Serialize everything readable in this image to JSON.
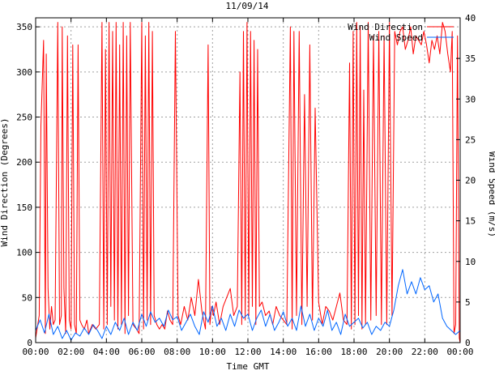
{
  "chart_data": {
    "type": "line",
    "title": "11/09/14",
    "xlabel": "Time GMT",
    "ylabel_left": "Wind Direction (Degrees)",
    "ylabel_right": "Wind Speed (m/s)",
    "x_unit": "hours GMT",
    "x_range": [
      0,
      24
    ],
    "x_tick_values": [
      0,
      2,
      4,
      6,
      8,
      10,
      12,
      14,
      16,
      18,
      20,
      22,
      24
    ],
    "x_tick_labels": [
      "00:00",
      "02:00",
      "04:00",
      "06:00",
      "08:00",
      "10:00",
      "12:00",
      "14:00",
      "16:00",
      "18:00",
      "20:00",
      "22:00",
      "00:00"
    ],
    "y_left_range": [
      0,
      360
    ],
    "y_left_ticks": [
      0,
      50,
      100,
      150,
      200,
      250,
      300,
      350
    ],
    "y_left_tick_labels": [
      "0",
      "50",
      "100",
      "150",
      "200",
      "250",
      "300",
      "350"
    ],
    "y_right_range": [
      0,
      40
    ],
    "y_right_ticks": [
      0,
      5,
      10,
      15,
      20,
      25,
      30,
      35,
      40
    ],
    "y_right_tick_labels": [
      "0",
      "5",
      "10",
      "15",
      "20",
      "25",
      "30",
      "35",
      "40"
    ],
    "grid": true,
    "legend_position": "top-right",
    "series": [
      {
        "name": "Wind Direction",
        "axis": "left",
        "color": "#ff0000",
        "x": [
          0.0,
          0.2,
          0.3,
          0.45,
          0.55,
          0.6,
          0.7,
          0.8,
          0.9,
          1.0,
          1.1,
          1.25,
          1.35,
          1.45,
          1.5,
          1.6,
          1.7,
          1.8,
          1.9,
          2.0,
          2.1,
          2.2,
          2.3,
          2.4,
          2.5,
          2.6,
          2.75,
          2.9,
          3.0,
          3.2,
          3.4,
          3.6,
          3.75,
          3.85,
          3.95,
          4.05,
          4.15,
          4.25,
          4.35,
          4.45,
          4.55,
          4.65,
          4.75,
          4.85,
          4.95,
          5.05,
          5.15,
          5.25,
          5.35,
          5.5,
          5.7,
          5.85,
          6.0,
          6.1,
          6.2,
          6.3,
          6.4,
          6.5,
          6.6,
          6.7,
          6.85,
          7.0,
          7.15,
          7.3,
          7.45,
          7.6,
          7.75,
          7.9,
          8.05,
          8.2,
          8.4,
          8.6,
          8.8,
          9.0,
          9.2,
          9.4,
          9.6,
          9.75,
          9.85,
          9.95,
          10.05,
          10.2,
          10.4,
          10.6,
          10.8,
          11.0,
          11.2,
          11.4,
          11.55,
          11.65,
          11.75,
          11.85,
          11.95,
          12.05,
          12.15,
          12.25,
          12.35,
          12.45,
          12.55,
          12.65,
          12.8,
          13.0,
          13.2,
          13.4,
          13.6,
          13.8,
          14.0,
          14.2,
          14.4,
          14.5,
          14.6,
          14.75,
          14.9,
          15.05,
          15.2,
          15.35,
          15.5,
          15.65,
          15.8,
          16.0,
          16.2,
          16.4,
          16.6,
          16.8,
          17.0,
          17.2,
          17.4,
          17.6,
          17.75,
          17.85,
          17.95,
          18.05,
          18.15,
          18.25,
          18.35,
          18.45,
          18.55,
          18.65,
          18.8,
          18.95,
          19.1,
          19.25,
          19.4,
          19.55,
          19.7,
          19.85,
          20.0,
          20.15,
          20.3,
          20.45,
          20.6,
          20.75,
          20.9,
          21.05,
          21.2,
          21.35,
          21.5,
          21.65,
          21.8,
          21.95,
          22.1,
          22.25,
          22.4,
          22.55,
          22.7,
          22.85,
          23.0,
          23.15,
          23.3,
          23.45,
          23.55,
          23.65,
          23.75,
          23.85,
          23.95,
          24.0
        ],
        "y": [
          5,
          30,
          240,
          335,
          10,
          320,
          60,
          15,
          40,
          20,
          25,
          355,
          20,
          30,
          350,
          60,
          10,
          340,
          25,
          15,
          330,
          20,
          10,
          330,
          25,
          20,
          15,
          25,
          10,
          20,
          15,
          20,
          355,
          15,
          325,
          20,
          355,
          40,
          345,
          25,
          355,
          15,
          330,
          20,
          355,
          10,
          340,
          30,
          355,
          20,
          15,
          10,
          355,
          15,
          340,
          25,
          355,
          20,
          345,
          30,
          20,
          15,
          20,
          15,
          35,
          25,
          20,
          345,
          30,
          20,
          40,
          25,
          50,
          30,
          70,
          35,
          15,
          330,
          20,
          40,
          30,
          45,
          20,
          40,
          50,
          60,
          30,
          40,
          300,
          20,
          345,
          25,
          355,
          30,
          345,
          40,
          335,
          20,
          325,
          40,
          45,
          30,
          35,
          20,
          40,
          30,
          25,
          20,
          350,
          15,
          345,
          30,
          345,
          20,
          275,
          40,
          330,
          25,
          260,
          45,
          20,
          40,
          35,
          25,
          40,
          55,
          25,
          20,
          310,
          15,
          345,
          20,
          355,
          30,
          350,
          15,
          280,
          20,
          355,
          25,
          340,
          30,
          345,
          20,
          340,
          20,
          355,
          30,
          345,
          330,
          345,
          350,
          325,
          335,
          350,
          320,
          340,
          335,
          330,
          345,
          330,
          310,
          335,
          325,
          340,
          320,
          355,
          345,
          320,
          300,
          345,
          10,
          20,
          340,
          5,
          0
        ]
      },
      {
        "name": "Wind Speed",
        "axis": "right",
        "color": "#0066ff",
        "x": [
          0.0,
          0.25,
          0.5,
          0.75,
          1.0,
          1.25,
          1.5,
          1.75,
          2.0,
          2.25,
          2.5,
          2.75,
          3.0,
          3.25,
          3.5,
          3.75,
          4.0,
          4.25,
          4.5,
          4.75,
          5.0,
          5.25,
          5.5,
          5.75,
          6.0,
          6.25,
          6.5,
          6.75,
          7.0,
          7.25,
          7.5,
          7.75,
          8.0,
          8.25,
          8.5,
          8.75,
          9.0,
          9.25,
          9.5,
          9.75,
          10.0,
          10.25,
          10.5,
          10.75,
          11.0,
          11.25,
          11.5,
          11.75,
          12.0,
          12.25,
          12.5,
          12.75,
          13.0,
          13.25,
          13.5,
          13.75,
          14.0,
          14.25,
          14.5,
          14.75,
          15.0,
          15.25,
          15.5,
          15.75,
          16.0,
          16.25,
          16.5,
          16.75,
          17.0,
          17.25,
          17.5,
          17.75,
          18.0,
          18.25,
          18.5,
          18.75,
          19.0,
          19.25,
          19.5,
          19.75,
          20.0,
          20.25,
          20.5,
          20.75,
          21.0,
          21.25,
          21.5,
          21.75,
          22.0,
          22.25,
          22.5,
          22.75,
          23.0,
          23.25,
          23.5,
          23.75,
          24.0
        ],
        "y": [
          1.5,
          2.8,
          1.2,
          3.5,
          1.0,
          2.0,
          0.5,
          1.5,
          0.3,
          1.2,
          0.8,
          1.8,
          1.0,
          2.2,
          1.5,
          0.5,
          2.0,
          1.0,
          2.5,
          1.5,
          3.0,
          1.0,
          2.5,
          1.5,
          3.5,
          2.0,
          3.8,
          2.5,
          3.0,
          2.0,
          4.0,
          2.8,
          3.2,
          1.5,
          2.5,
          3.5,
          2.0,
          1.0,
          3.8,
          2.5,
          4.5,
          2.0,
          3.0,
          1.5,
          3.5,
          2.0,
          4.0,
          3.0,
          3.5,
          1.5,
          3.0,
          4.0,
          2.0,
          3.5,
          1.5,
          2.5,
          3.8,
          2.0,
          3.0,
          1.5,
          4.5,
          2.0,
          3.5,
          1.5,
          3.0,
          2.0,
          4.0,
          1.5,
          2.5,
          1.0,
          3.5,
          2.0,
          2.5,
          3.0,
          1.8,
          2.5,
          1.0,
          2.0,
          1.5,
          2.5,
          2.0,
          4.0,
          7.0,
          9.0,
          6.0,
          7.5,
          6.0,
          8.0,
          6.5,
          7.0,
          5.0,
          6.0,
          3.0,
          2.0,
          1.5,
          1.0,
          1.5
        ]
      }
    ]
  }
}
